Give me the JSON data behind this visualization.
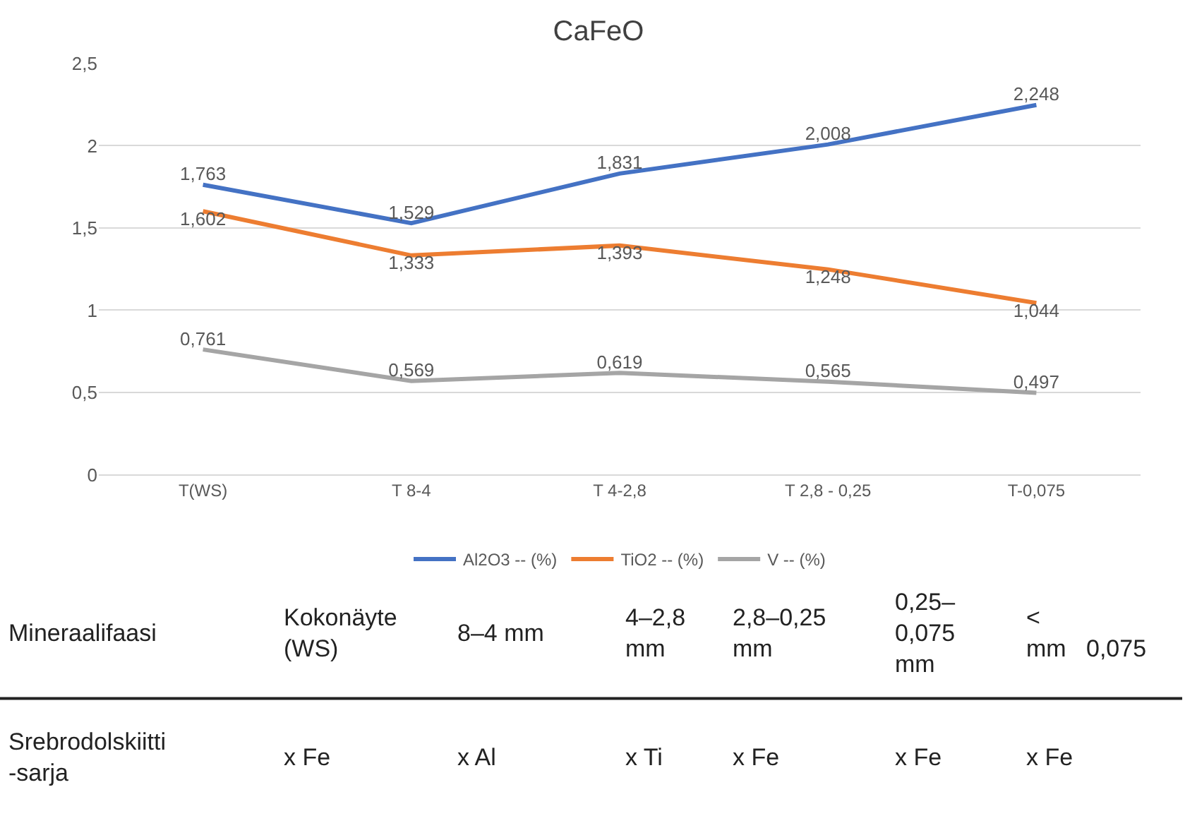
{
  "chart_data": {
    "type": "line",
    "title": "CaFeO",
    "categories": [
      "T(WS)",
      "T 8-4",
      "T 4-2,8",
      "T 2,8 - 0,25",
      "T-0,075"
    ],
    "series": [
      {
        "name": "Al2O3 -- (%)",
        "color": "#4472c4",
        "values": [
          1.763,
          1.529,
          1.831,
          2.008,
          2.248
        ],
        "value_labels": [
          "1,763",
          "1,529",
          "1,831",
          "2,008",
          "2,248"
        ]
      },
      {
        "name": "TiO2 -- (%)",
        "color": "#ed7d31",
        "values": [
          1.602,
          1.333,
          1.393,
          1.248,
          1.044
        ],
        "value_labels": [
          "1,602",
          "1,333",
          "1,393",
          "1,248",
          "1,044"
        ]
      },
      {
        "name": "V -- (%)",
        "color": "#a5a5a5",
        "values": [
          0.761,
          0.569,
          0.619,
          0.565,
          0.497
        ],
        "value_labels": [
          "0,761",
          "0,569",
          "0,619",
          "0,565",
          "0,497"
        ]
      }
    ],
    "ylim": [
      0,
      2.5
    ],
    "yticks": [
      {
        "value": 0,
        "label": "0"
      },
      {
        "value": 0.5,
        "label": "0,5"
      },
      {
        "value": 1,
        "label": "1"
      },
      {
        "value": 1.5,
        "label": "1,5"
      },
      {
        "value": 2,
        "label": "2"
      },
      {
        "value": 2.5,
        "label": "2,5"
      }
    ],
    "grid": "y",
    "legend": "bottom",
    "marker": "none",
    "line_style": "solid",
    "annotations": [
      "Mineraalifaasi",
      "Kokonäyte\n(WS)",
      "8–4 mm",
      "4–2,8\nmm",
      "2,8–0,25\nmm",
      "0,25–\n0,075\nmm",
      "<\nmm   0,075",
      "Srebrodolskiitti\n-sarja",
      "x Fe",
      "x Al",
      "x Ti",
      "x Fe",
      "x Fe",
      "x Fe"
    ]
  }
}
